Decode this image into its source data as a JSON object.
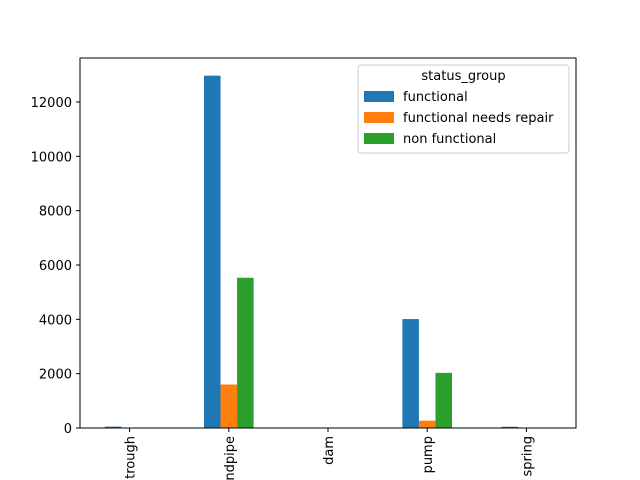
{
  "chart_data": {
    "type": "bar",
    "categories": [
      "trough",
      "standpipe",
      "dam",
      "pump",
      "spring"
    ],
    "series": [
      {
        "name": "functional",
        "color": "#1f77b4",
        "values": [
          50,
          12970,
          5,
          4010,
          45
        ]
      },
      {
        "name": "functional needs repair",
        "color": "#ff7f0e",
        "values": [
          5,
          1600,
          0,
          270,
          5
        ]
      },
      {
        "name": "non functional",
        "color": "#2ca02c",
        "values": [
          10,
          5530,
          0,
          2030,
          10
        ]
      }
    ],
    "yticks": [
      0,
      2000,
      4000,
      6000,
      8000,
      10000,
      12000
    ],
    "ytick_labels": [
      "0",
      "2000",
      "4000",
      "6000",
      "8000",
      "10000",
      "12000"
    ],
    "ylim": [
      0,
      13620
    ],
    "xlabel": "",
    "ylabel": "",
    "title": "",
    "legend": {
      "title": "status_group",
      "position": "top-right"
    },
    "grid": false
  }
}
